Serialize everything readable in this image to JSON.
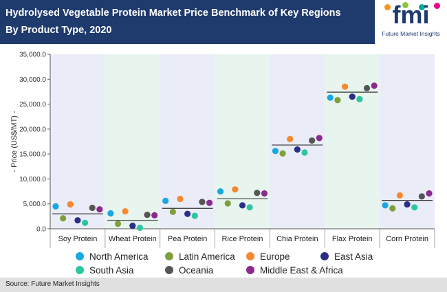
{
  "header": {
    "title_line1": "Hydrolysed Vegetable Protein Market Price Benchmark of Key Regions",
    "title_line2": "By Product Type, 2020"
  },
  "logo": {
    "text": "fmi",
    "subtitle": "Future Market Insights",
    "colors": [
      "#f7941d",
      "#8dc63f",
      "#00a99d",
      "#ec008c"
    ]
  },
  "footer": {
    "source": "Source: Future Market Insights"
  },
  "colors": {
    "header_bg": "#1f3a6d",
    "band_a": "#eaedf7",
    "band_b": "#e8f5ee"
  },
  "chart_data": {
    "type": "scatter",
    "ylabel": "- Price (US$/MT) -",
    "ylim": [
      0,
      35000
    ],
    "yticks": [
      "0.0",
      "5,000.0",
      "10,000.0",
      "15,000.0",
      "20,000.0",
      "25,000.0",
      "30,000.0",
      "35,000.0"
    ],
    "categories": [
      "Soy Protein",
      "Wheat Protein",
      "Pea Protein",
      "Rice Protein",
      "Chia Protein",
      "Flax Protein",
      "Corn Protein"
    ],
    "averages": [
      3000,
      1700,
      4100,
      6000,
      16800,
      27400,
      5700
    ],
    "series": [
      {
        "name": "North America",
        "color": "#1aa7df",
        "values": [
          4500,
          3100,
          5600,
          7500,
          15600,
          26300,
          4700
        ]
      },
      {
        "name": "Latin America",
        "color": "#7f9f3a",
        "values": [
          2100,
          1000,
          3400,
          5100,
          15100,
          25800,
          4100
        ]
      },
      {
        "name": "Europe",
        "color": "#f7882f",
        "values": [
          4900,
          3500,
          6000,
          7900,
          18000,
          28500,
          6700
        ]
      },
      {
        "name": "East Asia",
        "color": "#2a2f86",
        "values": [
          1700,
          600,
          3000,
          4700,
          15900,
          26500,
          4900
        ]
      },
      {
        "name": "South Asia",
        "color": "#2cc6a0",
        "values": [
          1200,
          200,
          2600,
          4300,
          15300,
          26000,
          4300
        ]
      },
      {
        "name": "Oceania",
        "color": "#555555",
        "values": [
          4200,
          2800,
          5400,
          7200,
          17700,
          28200,
          6500
        ]
      },
      {
        "name": "Middle East & Africa",
        "color": "#8b2a8f",
        "values": [
          3900,
          2700,
          5200,
          7100,
          18200,
          28700,
          7100
        ]
      }
    ],
    "legend_position": "bottom",
    "grid": false
  }
}
